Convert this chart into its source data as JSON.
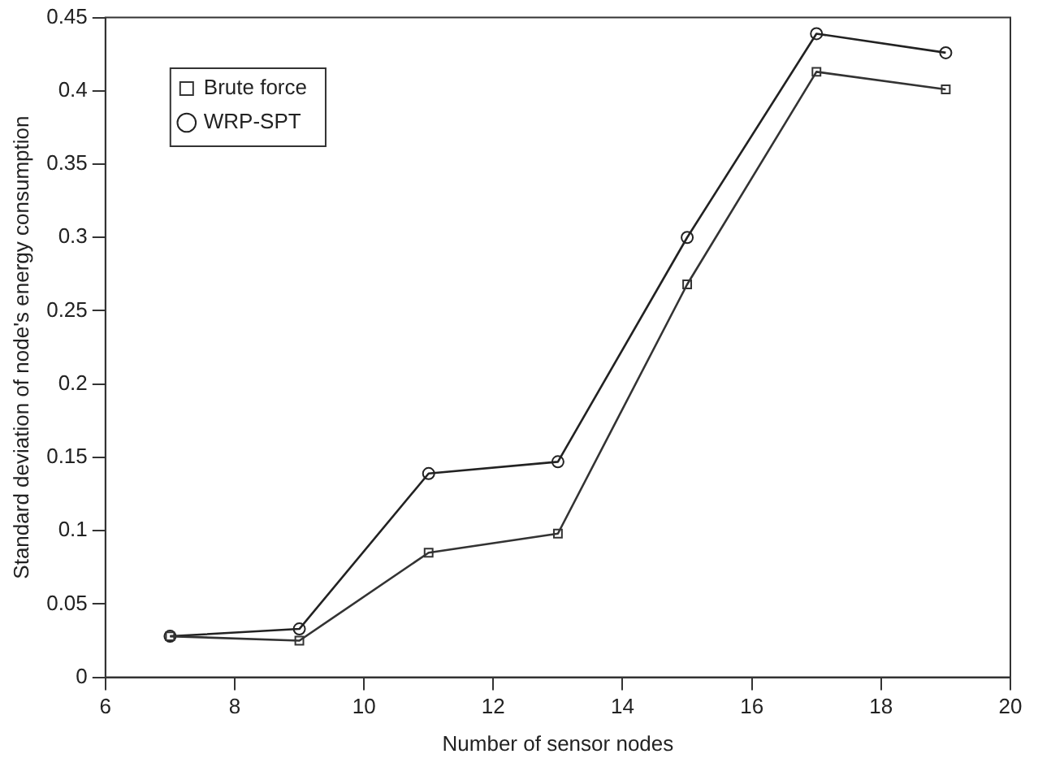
{
  "chart_data": {
    "type": "line",
    "xlabel": "Number of sensor nodes",
    "ylabel": "Standard deviation of node's energy consumption",
    "x": [
      7,
      9,
      11,
      13,
      15,
      17,
      19
    ],
    "series": [
      {
        "name": "Brute force",
        "color": "#333333",
        "marker": "square",
        "values": [
          0.028,
          0.025,
          0.085,
          0.098,
          0.268,
          0.413,
          0.401
        ]
      },
      {
        "name": "WRP-SPT",
        "color": "#222222",
        "marker": "circle",
        "values": [
          0.028,
          0.033,
          0.139,
          0.147,
          0.3,
          0.439,
          0.426
        ]
      }
    ],
    "xlim": [
      6,
      20
    ],
    "xticks": [
      6,
      8,
      10,
      12,
      14,
      16,
      18,
      20
    ],
    "ylim": [
      0,
      0.45
    ],
    "yticks": [
      0,
      0.05,
      0.1,
      0.15,
      0.2,
      0.25,
      0.3,
      0.35,
      0.4,
      0.45
    ],
    "grid": false,
    "legend": "top left",
    "line_style": "solid"
  }
}
